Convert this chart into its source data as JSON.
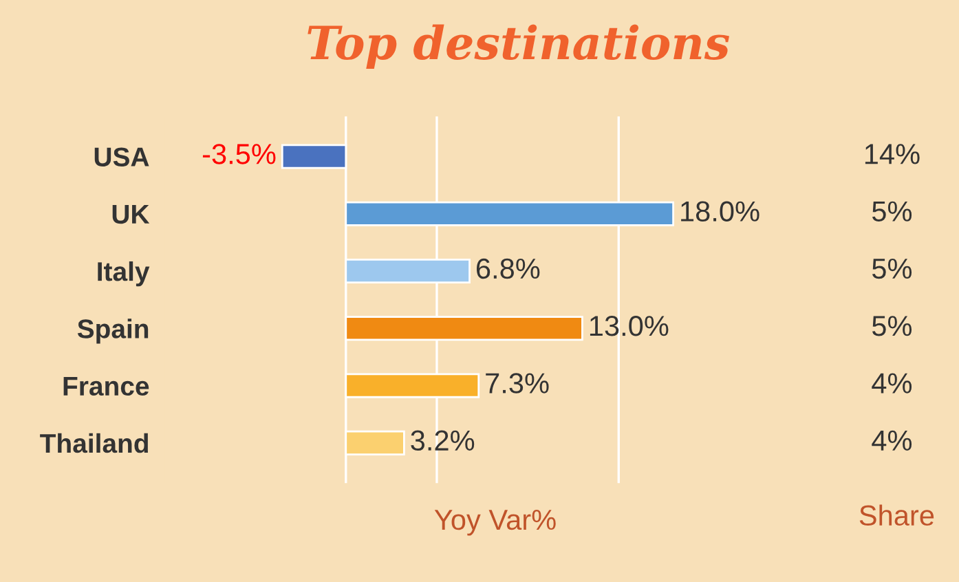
{
  "chart_data": {
    "type": "bar",
    "orientation": "horizontal",
    "title": "Top destinations",
    "xlabel": "Yoy Var%",
    "categories": [
      "USA",
      "UK",
      "Italy",
      "Spain",
      "France",
      "Thailand"
    ],
    "values": [
      -3.5,
      18.0,
      6.8,
      13.0,
      7.3,
      3.2
    ],
    "colors": [
      "#4a72bf",
      "#5b9bd5",
      "#9dc8ee",
      "#f08a12",
      "#f9b02a",
      "#fbd06f"
    ],
    "value_labels": [
      "-3.5%",
      "18.0%",
      "6.8%",
      "13.0%",
      "7.3%",
      "3.2%"
    ],
    "xticks": [
      {
        "value": 5,
        "label": null
      },
      {
        "value": 15,
        "label": null
      }
    ],
    "grid": "x",
    "annotations": [
      "Share",
      "14%",
      "5%",
      "5%",
      "5%",
      "4%",
      "4%"
    ]
  }
}
